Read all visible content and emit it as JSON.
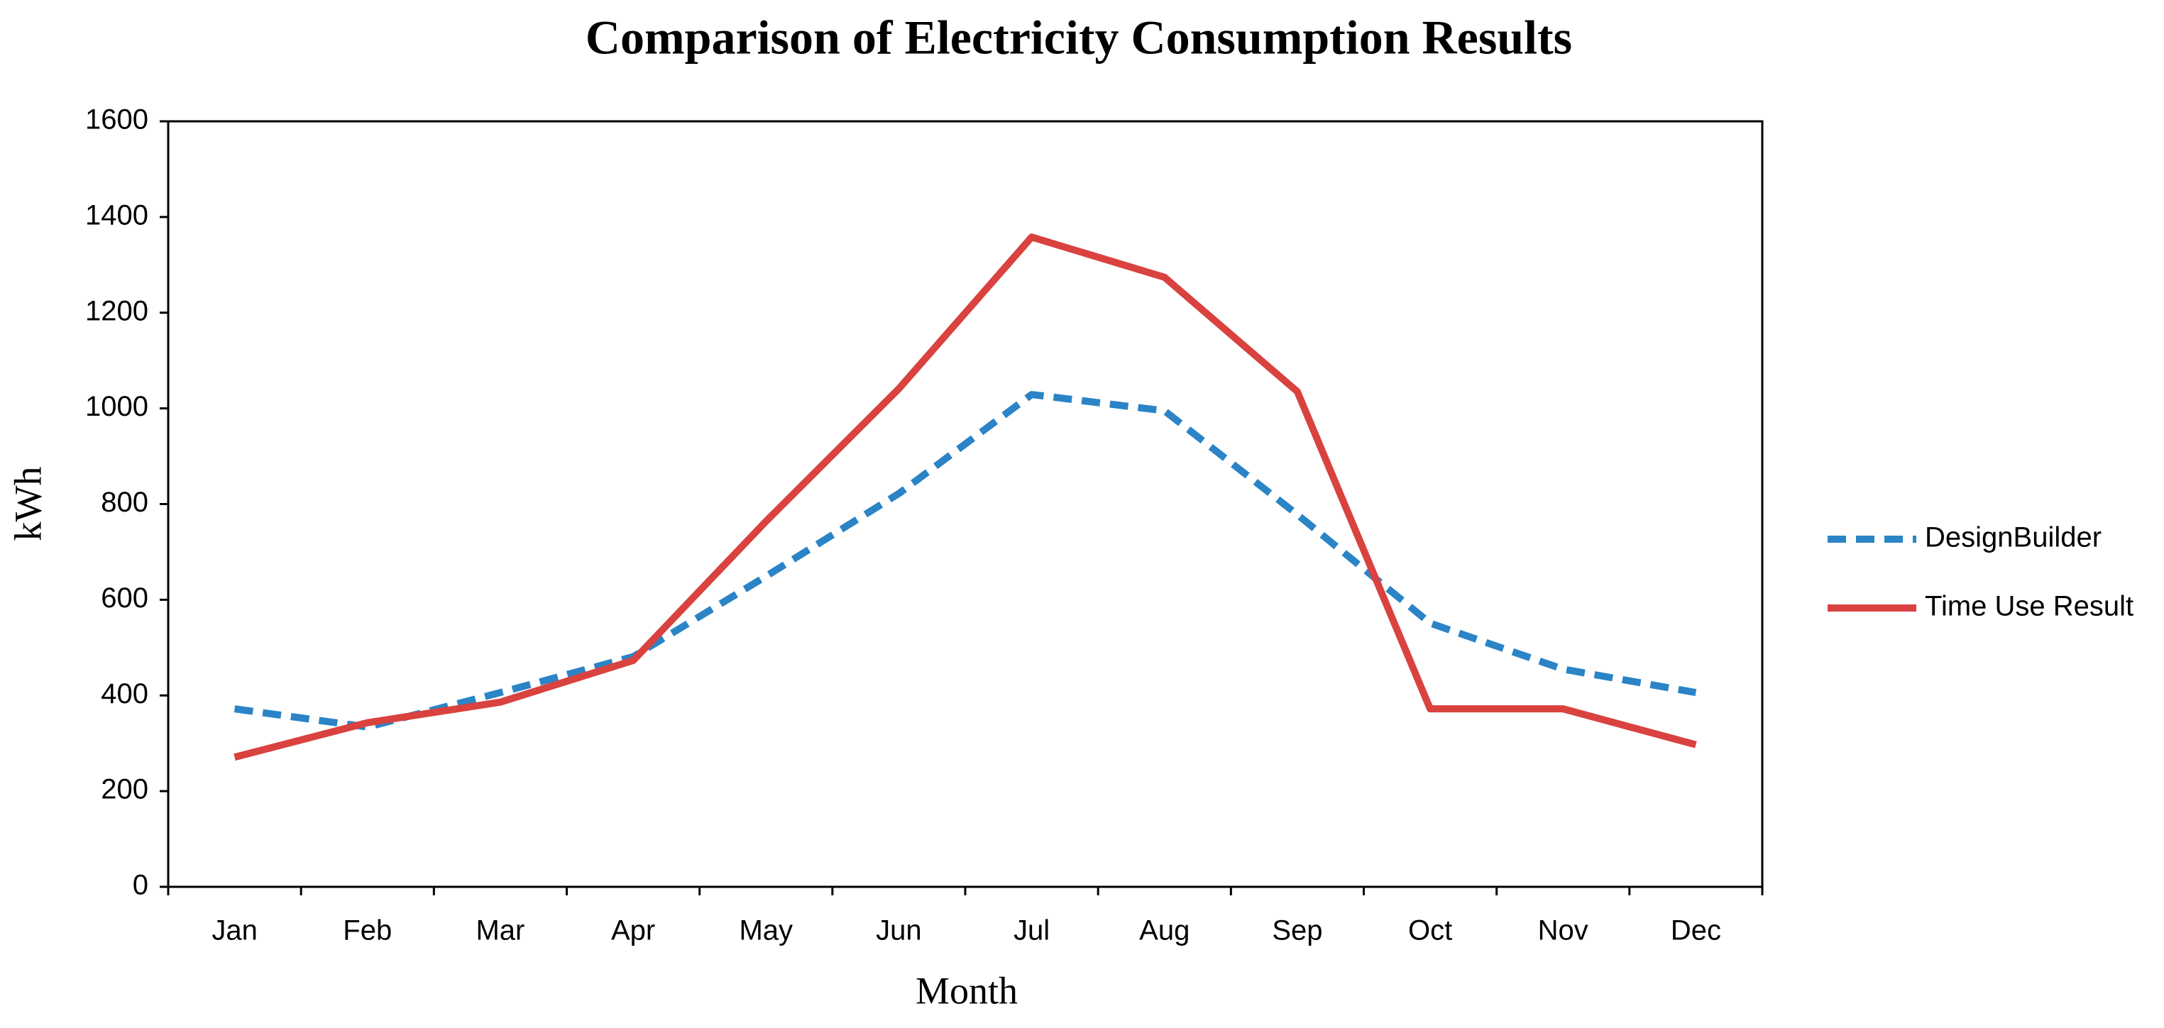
{
  "chart_data": {
    "type": "line",
    "title": "Comparison of Electricity Consumption Results",
    "x_label": "Month",
    "y_label": "kWh",
    "categories": [
      "Jan",
      "Feb",
      "Mar",
      "Apr",
      "May",
      "Jun",
      "Jul",
      "Aug",
      "Sep",
      "Oct",
      "Nov",
      "Dec"
    ],
    "series": [
      {
        "name": "DesignBuilder",
        "color": "#2a84c6",
        "dashed": true,
        "values": [
          372,
          334,
          406,
          481,
          649,
          822,
          1029,
          995,
          778,
          551,
          455,
          406
        ]
      },
      {
        "name": "Time Use Result",
        "color": "#d9423f",
        "dashed": false,
        "values": [
          271,
          343,
          386,
          473,
          764,
          1041,
          1358,
          1274,
          1035,
          372,
          372,
          297
        ]
      }
    ],
    "ylim": [
      0,
      1600
    ],
    "yticks": [
      0,
      200,
      400,
      600,
      800,
      1000,
      1200,
      1400,
      1600
    ],
    "grid": false,
    "legend": "right"
  }
}
